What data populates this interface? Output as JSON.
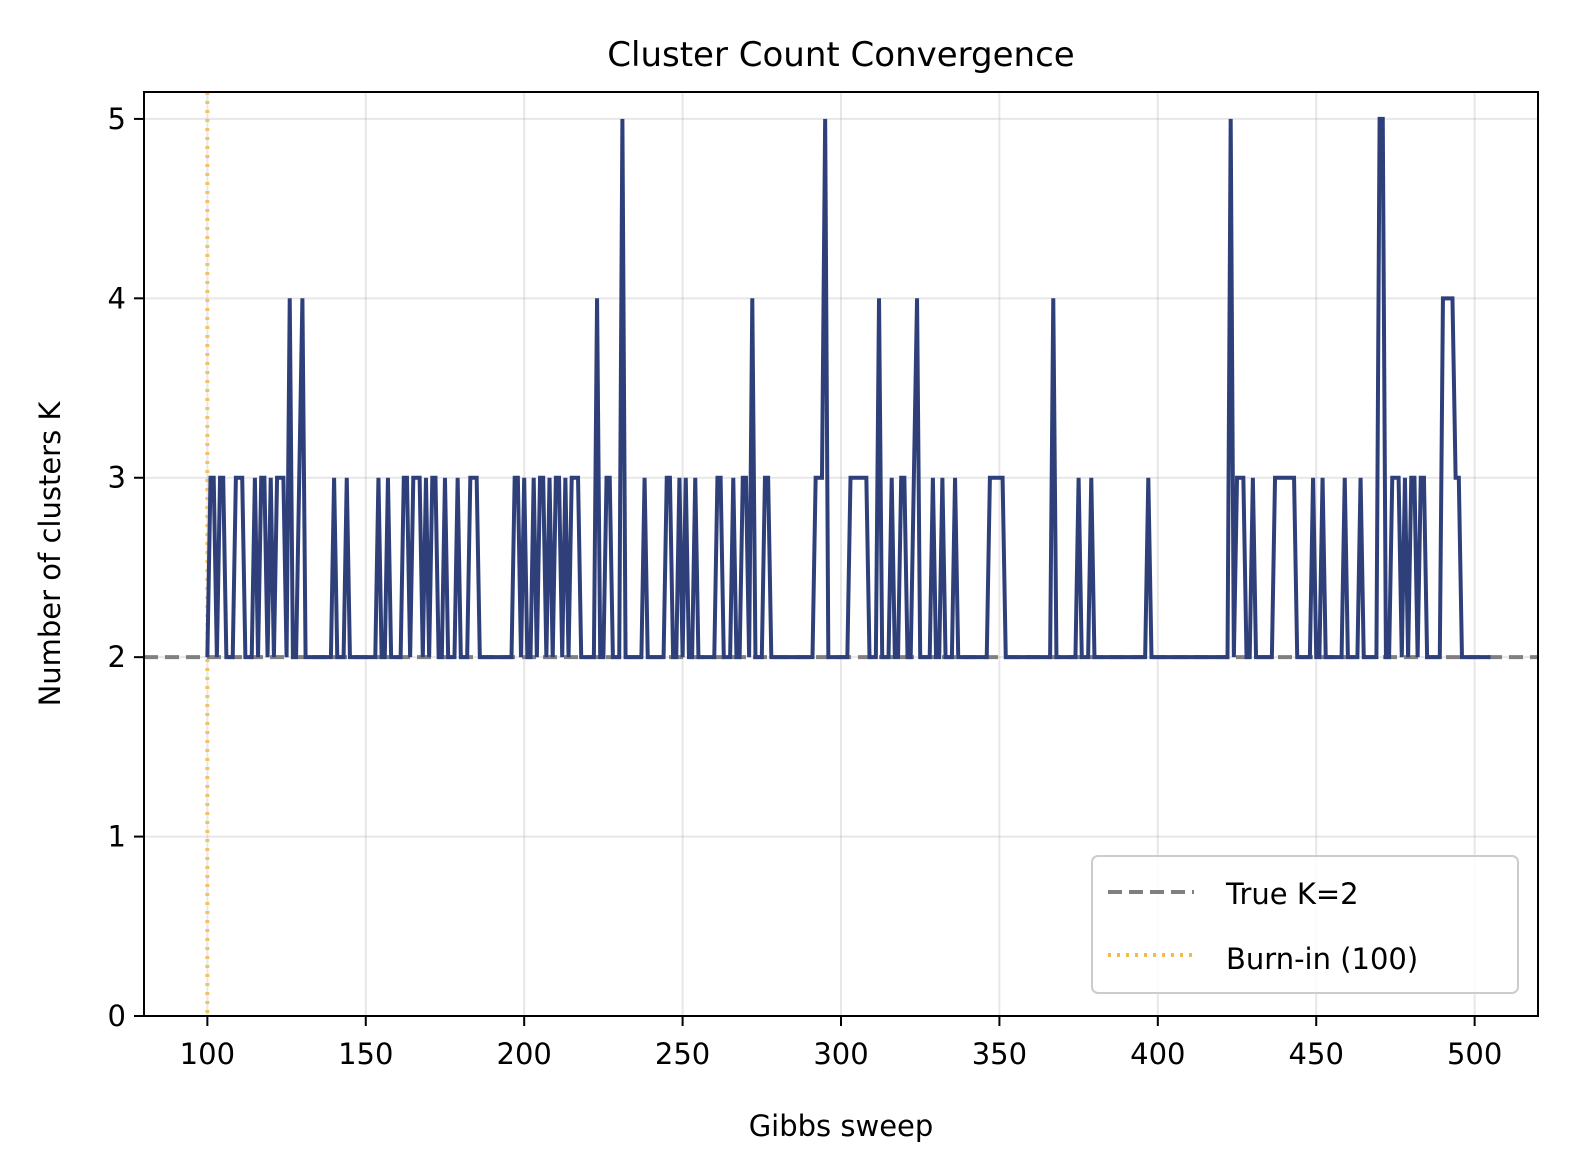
{
  "chart_data": {
    "type": "line",
    "title": "Cluster Count Convergence",
    "xlabel": "Gibbs sweep",
    "ylabel": "Number of clusters K",
    "xlim": [
      80,
      520
    ],
    "ylim": [
      0,
      5.15
    ],
    "xticks": [
      100,
      150,
      200,
      250,
      300,
      350,
      400,
      450,
      500
    ],
    "yticks": [
      0,
      1,
      2,
      3,
      4,
      5
    ],
    "grid": true,
    "legend_position": "lower right",
    "colors": {
      "trace": "#2e3f7a",
      "true_k": "#808080",
      "burn_in": "#f5b94a"
    },
    "reference_lines": [
      {
        "orientation": "horizontal",
        "value": 2,
        "label": "True K=2",
        "style": "dashed",
        "color": "#808080"
      },
      {
        "orientation": "vertical",
        "value": 100,
        "label": "Burn-in (100)",
        "style": "dotted",
        "color": "#f5b94a"
      }
    ],
    "series": [
      {
        "start": 100,
        "values": [
          2,
          3,
          3,
          2,
          3,
          3,
          2,
          2,
          2,
          3,
          3,
          3,
          2,
          2,
          2,
          3,
          2,
          3,
          3,
          2,
          3,
          2,
          3,
          3,
          3,
          2,
          4,
          2,
          2,
          3,
          4,
          2,
          2,
          2,
          2,
          2,
          2,
          2,
          2,
          2,
          3,
          2,
          2,
          2,
          3,
          2,
          2,
          2,
          2,
          2,
          2,
          2,
          2,
          2,
          3,
          2,
          2,
          3,
          2,
          2,
          2,
          2,
          3,
          3,
          2,
          3,
          3,
          3,
          2,
          3,
          2,
          3,
          3,
          2,
          2,
          3,
          2,
          2,
          2,
          3,
          2,
          2,
          2,
          3,
          3,
          3,
          2,
          2,
          2,
          2,
          2,
          2,
          2,
          2,
          2,
          2,
          2,
          3,
          3,
          2,
          3,
          2,
          2,
          3,
          2,
          3,
          3,
          2,
          3,
          2,
          3,
          3,
          2,
          3,
          2,
          3,
          3,
          3,
          2,
          2,
          2,
          2,
          2,
          4,
          2,
          2,
          3,
          3,
          2,
          2,
          2,
          5,
          2,
          2,
          2,
          2,
          2,
          2,
          3,
          2,
          2,
          2,
          2,
          2,
          2,
          3,
          3,
          2,
          2,
          3,
          2,
          3,
          2,
          2,
          3,
          2,
          2,
          2,
          2,
          2,
          2,
          3,
          3,
          2,
          2,
          2,
          3,
          2,
          2,
          3,
          3,
          2,
          4,
          2,
          2,
          2,
          3,
          3,
          2,
          2,
          2,
          2,
          2,
          2,
          2,
          2,
          2,
          2,
          2,
          2,
          2,
          2,
          3,
          3,
          3,
          5,
          2,
          2,
          2,
          2,
          2,
          2,
          2,
          3,
          3,
          3,
          3,
          3,
          3,
          2,
          2,
          2,
          4,
          2,
          2,
          2,
          3,
          2,
          2,
          3,
          3,
          2,
          2,
          3,
          4,
          2,
          2,
          2,
          2,
          3,
          2,
          2,
          3,
          2,
          2,
          2,
          3,
          2,
          2,
          2,
          2,
          2,
          2,
          2,
          2,
          2,
          2,
          3,
          3,
          3,
          3,
          3,
          2,
          2,
          2,
          2,
          2,
          2,
          2,
          2,
          2,
          2,
          2,
          2,
          2,
          2,
          2,
          4,
          2,
          2,
          2,
          2,
          2,
          2,
          2,
          3,
          2,
          2,
          2,
          3,
          2,
          2,
          2,
          2,
          2,
          2,
          2,
          2,
          2,
          2,
          2,
          2,
          2,
          2,
          2,
          2,
          2,
          3,
          2,
          2,
          2,
          2,
          2,
          2,
          2,
          2,
          2,
          2,
          2,
          2,
          2,
          2,
          2,
          2,
          2,
          2,
          2,
          2,
          2,
          2,
          2,
          2,
          2,
          5,
          2,
          3,
          3,
          3,
          2,
          2,
          3,
          2,
          2,
          2,
          2,
          2,
          2,
          3,
          3,
          3,
          3,
          3,
          3,
          3,
          2,
          2,
          2,
          2,
          2,
          3,
          2,
          2,
          3,
          2,
          2,
          2,
          2,
          2,
          2,
          3,
          2,
          2,
          2,
          2,
          3,
          2,
          2,
          2,
          2,
          2,
          5,
          5,
          2,
          2,
          3,
          3,
          3,
          2,
          3,
          2,
          3,
          3,
          2,
          3,
          3,
          2,
          2,
          2,
          2,
          2,
          4,
          4,
          4,
          4,
          3,
          3,
          2,
          2,
          2,
          2,
          2,
          2,
          2,
          2,
          2,
          2
        ]
      }
    ]
  },
  "legend": {
    "items": [
      {
        "label": "True K=2",
        "style": "dashed",
        "color": "#808080"
      },
      {
        "label": "Burn-in (100)",
        "style": "dotted",
        "color": "#f5b94a"
      }
    ]
  }
}
